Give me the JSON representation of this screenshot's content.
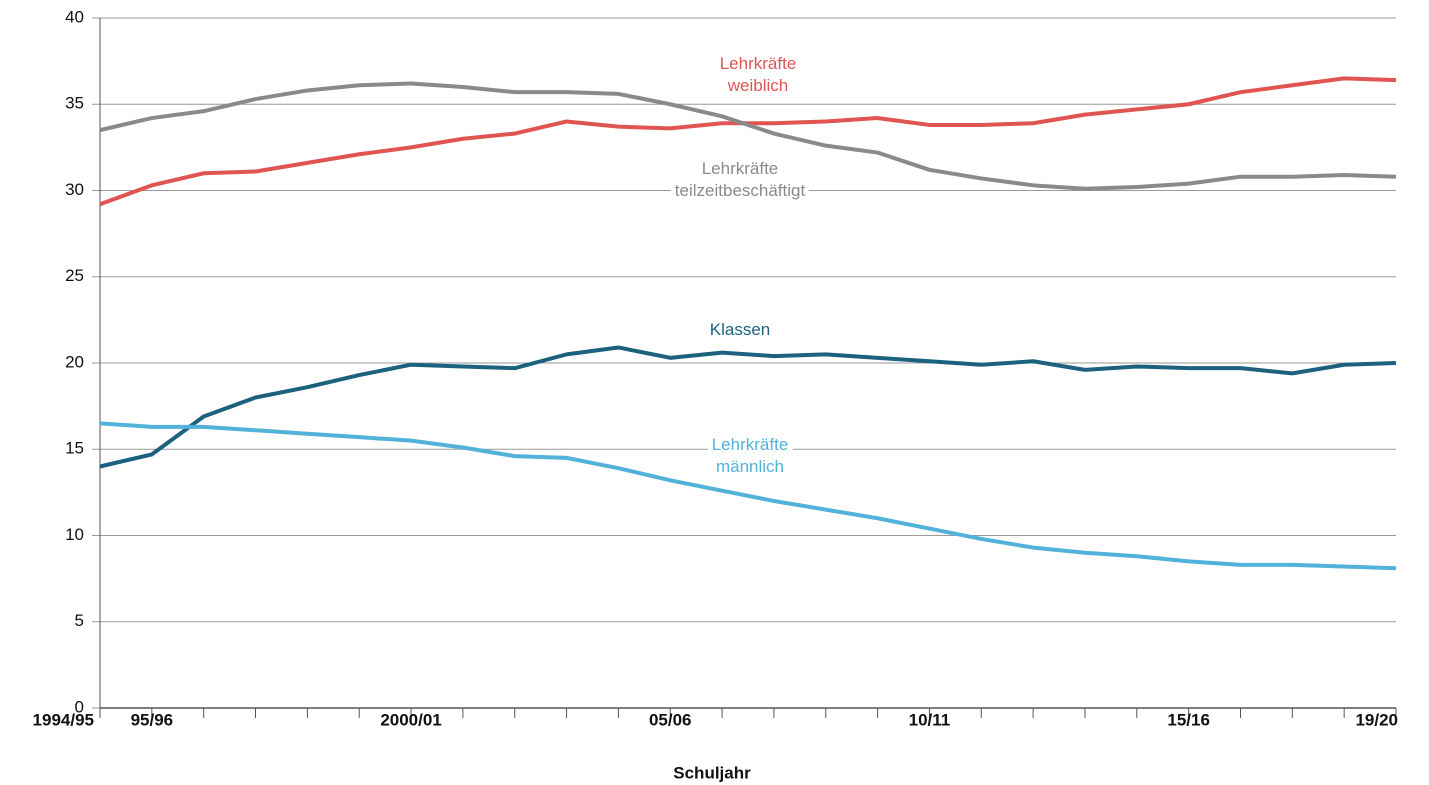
{
  "chart_data": {
    "type": "line",
    "x_label": "Schuljahr",
    "categories": [
      "1994/95",
      "95/96",
      null,
      null,
      null,
      null,
      "2000/01",
      null,
      null,
      null,
      null,
      "05/06",
      null,
      null,
      null,
      null,
      "10/11",
      null,
      null,
      null,
      null,
      "15/16",
      null,
      null,
      null,
      "19/20"
    ],
    "ylim": [
      0,
      40
    ],
    "yticks": [
      0,
      5,
      10,
      15,
      20,
      25,
      30,
      35,
      40
    ],
    "grid": true,
    "series": [
      {
        "name": "Lehrkräfte weiblich",
        "color": "#e05552",
        "values": [
          29.2,
          30.3,
          31.0,
          31.1,
          31.6,
          32.1,
          32.5,
          33.0,
          33.3,
          34.0,
          33.7,
          33.6,
          33.9,
          33.9,
          34.0,
          34.2,
          33.8,
          33.8,
          33.9,
          34.4,
          34.7,
          35.0,
          35.7,
          36.1,
          36.5,
          36.4
        ]
      },
      {
        "name": "Lehrkräfte teilzeitbeschäftigt",
        "color": "#8a8a8a",
        "values": [
          33.5,
          34.2,
          34.6,
          35.3,
          35.8,
          36.1,
          36.2,
          36.0,
          35.7,
          35.7,
          35.6,
          35.0,
          34.3,
          33.3,
          32.6,
          32.2,
          31.2,
          30.7,
          30.3,
          30.1,
          30.2,
          30.4,
          30.8,
          30.8,
          30.9,
          30.8
        ]
      },
      {
        "name": "Klassen",
        "color": "#1c617e",
        "values": [
          14.0,
          14.7,
          16.9,
          18.0,
          18.6,
          19.3,
          19.9,
          19.8,
          19.7,
          20.5,
          20.9,
          20.3,
          20.6,
          20.4,
          20.5,
          20.3,
          20.1,
          19.9,
          20.1,
          19.6,
          19.8,
          19.7,
          19.7,
          19.4,
          19.9,
          20.0
        ]
      },
      {
        "name": "Lehrkräfte männlich",
        "color": "#52b2d9",
        "values": [
          16.5,
          16.3,
          16.3,
          16.1,
          15.9,
          15.7,
          15.5,
          15.1,
          14.6,
          14.5,
          13.9,
          13.2,
          12.6,
          12.0,
          11.5,
          11.0,
          10.4,
          9.8,
          9.3,
          9.0,
          8.8,
          8.5,
          8.3,
          8.3,
          8.2,
          8.1
        ]
      }
    ]
  }
}
